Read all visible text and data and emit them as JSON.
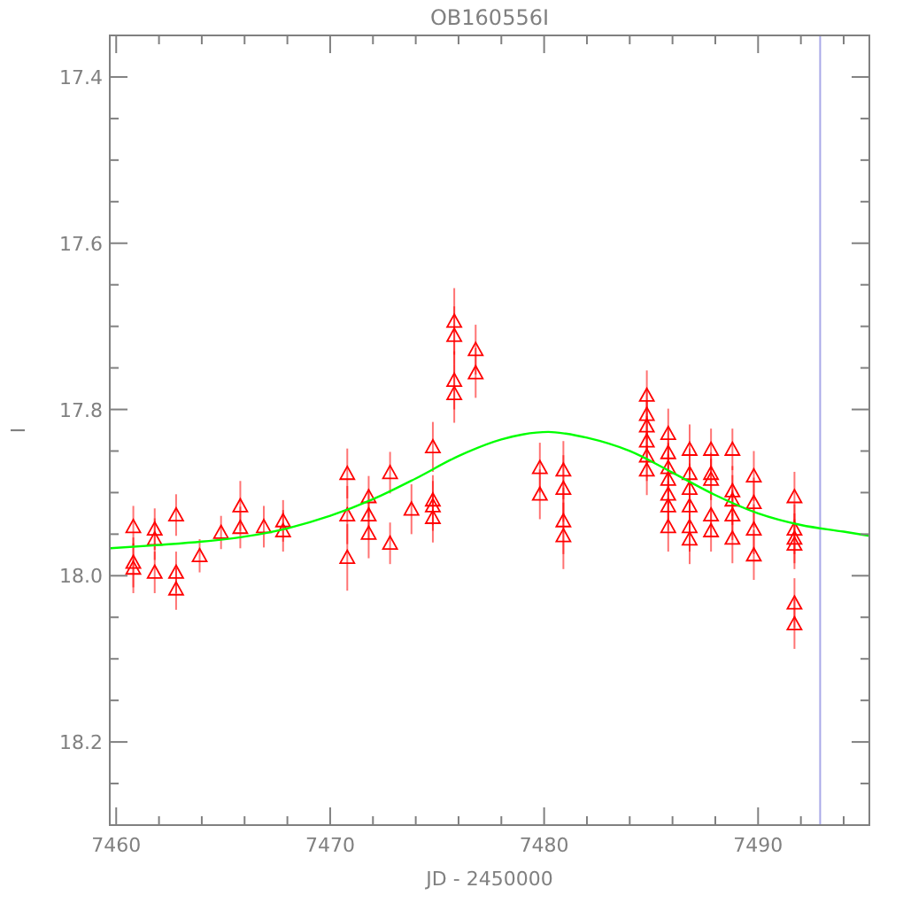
{
  "chart_data": {
    "type": "scatter",
    "title": "OB160556I",
    "xlabel": "JD - 2450000",
    "ylabel": "I",
    "xlim": [
      7459.7,
      7495.2
    ],
    "ylim": [
      18.3,
      17.35
    ],
    "xticks": [
      7460,
      {
        "value": 7462,
        "label": null
      },
      {
        "value": 7464,
        "label": null
      },
      {
        "value": 7466,
        "label": null
      },
      {
        "value": 7468,
        "label": null
      },
      7470,
      {
        "value": 7472,
        "label": null
      },
      {
        "value": 7474,
        "label": null
      },
      {
        "value": 7476,
        "label": null
      },
      {
        "value": 7478,
        "label": null
      },
      7480,
      {
        "value": 7482,
        "label": null
      },
      {
        "value": 7484,
        "label": null
      },
      {
        "value": 7486,
        "label": null
      },
      {
        "value": 7488,
        "label": null
      },
      7490,
      {
        "value": 7492,
        "label": null
      },
      {
        "value": 7494,
        "label": null
      }
    ],
    "yticks": [
      17.4,
      {
        "value": 17.45,
        "label": null
      },
      {
        "value": 17.5,
        "label": null
      },
      {
        "value": 17.55,
        "label": null
      },
      17.6,
      {
        "value": 17.65,
        "label": null
      },
      {
        "value": 17.7,
        "label": null
      },
      {
        "value": 17.75,
        "label": null
      },
      17.8,
      {
        "value": 17.85,
        "label": null
      },
      {
        "value": 17.9,
        "label": null
      },
      {
        "value": 17.95,
        "label": null
      },
      {
        "value": 18,
        "label": "18.0"
      },
      {
        "value": 18.05,
        "label": null
      },
      {
        "value": 18.1,
        "label": null
      },
      {
        "value": 18.15,
        "label": null
      },
      18.2,
      {
        "value": 18.25,
        "label": null
      }
    ],
    "marker": "triangle",
    "grid": false,
    "ref_lines": [
      {
        "axis": "x",
        "value": 7492.9,
        "color": "#a8a8e8"
      }
    ],
    "series": [
      {
        "color": "#ff0000",
        "x": [
          7460.8,
          7460.8,
          7460.8,
          7461.8,
          7461.8,
          7461.8,
          7462.8,
          7462.8,
          7462.8,
          7463.9,
          7464.9,
          7465.8,
          7465.8,
          7466.9,
          7467.8,
          7467.8,
          7470.8,
          7470.8,
          7470.8,
          7471.8,
          7471.8,
          7471.8,
          7472.8,
          7472.8,
          7473.8,
          7474.8,
          7474.8,
          7474.8,
          7474.8,
          7475.8,
          7475.8,
          7475.8,
          7475.8,
          7476.8,
          7476.8,
          7479.8,
          7479.8,
          7480.9,
          7480.9,
          7480.9,
          7480.9,
          7484.8,
          7484.8,
          7484.8,
          7484.8,
          7484.8,
          7484.8,
          7485.8,
          7485.8,
          7485.8,
          7485.8,
          7485.8,
          7485.8,
          7485.8,
          7486.8,
          7486.8,
          7486.8,
          7486.8,
          7486.8,
          7486.8,
          7487.8,
          7487.8,
          7487.8,
          7487.8,
          7487.8,
          7488.8,
          7488.8,
          7488.8,
          7488.8,
          7488.8,
          7489.8,
          7489.8,
          7489.8,
          7489.8,
          7491.7,
          7491.7,
          7491.7,
          7491.7,
          7491.7,
          7491.7
        ],
        "values": [
          17.941,
          17.984,
          17.991,
          17.944,
          17.956,
          17.996,
          17.927,
          17.996,
          18.016,
          17.976,
          17.948,
          17.916,
          17.942,
          17.941,
          17.934,
          17.946,
          17.877,
          17.927,
          17.978,
          17.905,
          17.927,
          17.949,
          17.876,
          17.961,
          17.92,
          17.845,
          17.909,
          17.916,
          17.93,
          17.694,
          17.711,
          17.765,
          17.781,
          17.728,
          17.756,
          17.87,
          17.902,
          17.873,
          17.895,
          17.934,
          17.952,
          17.783,
          17.806,
          17.82,
          17.838,
          17.856,
          17.873,
          17.829,
          17.852,
          17.87,
          17.884,
          17.902,
          17.916,
          17.941,
          17.848,
          17.877,
          17.895,
          17.916,
          17.941,
          17.956,
          17.848,
          17.877,
          17.884,
          17.927,
          17.946,
          17.848,
          17.898,
          17.909,
          17.927,
          17.955,
          17.88,
          17.912,
          17.944,
          17.975,
          17.905,
          17.944,
          17.955,
          17.962,
          18.033,
          18.058
        ],
        "errors": [
          0.025,
          0.03,
          0.03,
          0.025,
          0.025,
          0.025,
          0.025,
          0.025,
          0.025,
          0.02,
          0.02,
          0.03,
          0.025,
          0.025,
          0.025,
          0.025,
          0.03,
          0.035,
          0.04,
          0.025,
          0.03,
          0.03,
          0.025,
          0.025,
          0.03,
          0.03,
          0.03,
          0.03,
          0.03,
          0.04,
          0.035,
          0.035,
          0.035,
          0.03,
          0.03,
          0.03,
          0.03,
          0.035,
          0.04,
          0.04,
          0.04,
          0.03,
          0.03,
          0.03,
          0.03,
          0.03,
          0.03,
          0.03,
          0.03,
          0.03,
          0.03,
          0.03,
          0.03,
          0.03,
          0.03,
          0.03,
          0.03,
          0.03,
          0.03,
          0.03,
          0.025,
          0.025,
          0.025,
          0.025,
          0.025,
          0.025,
          0.03,
          0.03,
          0.03,
          0.03,
          0.03,
          0.03,
          0.03,
          0.03,
          0.03,
          0.03,
          0.03,
          0.03,
          0.03,
          0.03
        ]
      },
      {
        "type": "line",
        "color": "#00ff00",
        "marker": "none",
        "x": [
          7459.7,
          7462,
          7464,
          7466,
          7468,
          7470,
          7472,
          7474,
          7476,
          7478,
          7479,
          7480.2,
          7481,
          7482,
          7484,
          7486,
          7488,
          7490,
          7492,
          7494,
          7495.2
        ],
        "values": [
          17.967,
          17.963,
          17.959,
          17.953,
          17.943,
          17.928,
          17.908,
          17.883,
          17.856,
          17.836,
          17.83,
          17.827,
          17.829,
          17.834,
          17.85,
          17.876,
          17.903,
          17.925,
          17.939,
          17.947,
          17.952
        ]
      }
    ]
  }
}
